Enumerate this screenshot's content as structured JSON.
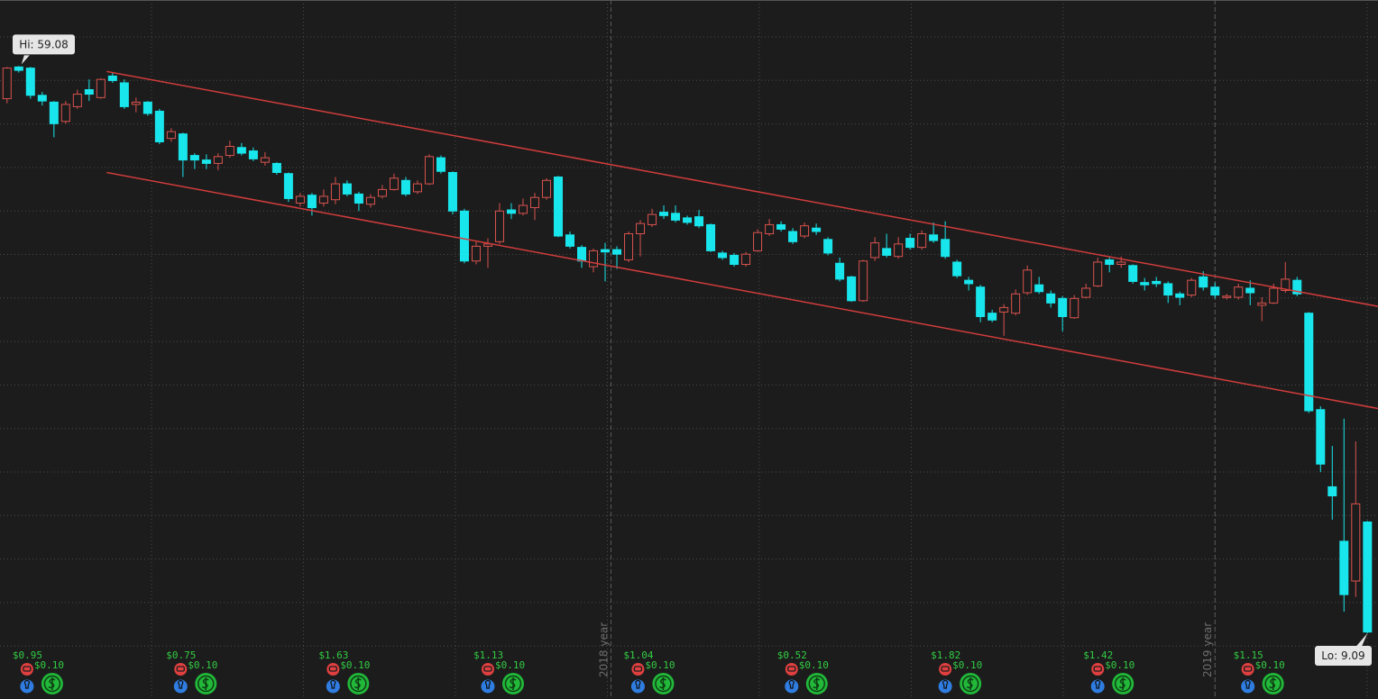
{
  "chart_data": {
    "type": "candlestick",
    "xlim": [
      -0.6,
      116.9
    ],
    "ylim": [
      3.3,
      64.9
    ],
    "up_color": "#d9534f",
    "down_color": "#19e6ec",
    "open": [
      56.2,
      59.0,
      58.9,
      56.5,
      55.9,
      54.2,
      55.5,
      57.0,
      56.3,
      58.2,
      57.6,
      55.7,
      55.9,
      55.1,
      52.7,
      53.1,
      51.2,
      50.8,
      50.5,
      51.2,
      51.9,
      51.6,
      50.6,
      50.5,
      49.6,
      47.0,
      47.7,
      47.0,
      47.3,
      48.7,
      47.8,
      46.9,
      47.6,
      48.2,
      49.0,
      48.0,
      48.7,
      51.0,
      49.7,
      46.3,
      41.9,
      43.2,
      43.6,
      46.4,
      46.1,
      46.6,
      47.5,
      49.3,
      44.2,
      43.1,
      41.4,
      42.9,
      42.9,
      42.0,
      44.3,
      45.1,
      46.2,
      46.1,
      45.7,
      45.8,
      45.1,
      42.6,
      42.4,
      41.6,
      42.8,
      44.3,
      45.1,
      44.5,
      44.1,
      44.8,
      43.8,
      41.7,
      40.5,
      38.4,
      42.2,
      43.0,
      42.3,
      43.9,
      43.1,
      44.2,
      43.8,
      41.8,
      40.2,
      39.6,
      37.3,
      37.4,
      37.3,
      39.1,
      39.8,
      39.0,
      38.6,
      36.9,
      38.7,
      39.7,
      42.0,
      41.6,
      41.5,
      40.0,
      40.1,
      39.9,
      39.0,
      38.9,
      40.5,
      39.6,
      38.7,
      38.7,
      39.5,
      38.0,
      38.2,
      39.3,
      40.2,
      37.3,
      28.8,
      22.0,
      17.2,
      13.7,
      18.9
    ],
    "high": [
      59.0,
      59.08,
      59.0,
      56.8,
      56.0,
      56.0,
      57.0,
      57.9,
      58.0,
      58.5,
      57.9,
      56.3,
      56.0,
      55.3,
      53.6,
      53.2,
      51.4,
      51.3,
      51.4,
      52.5,
      52.3,
      51.9,
      51.5,
      50.6,
      49.7,
      47.9,
      47.9,
      48.2,
      49.3,
      49.0,
      48.0,
      47.8,
      48.6,
      49.6,
      49.3,
      49.0,
      51.3,
      51.2,
      49.8,
      46.5,
      43.6,
      43.9,
      47.0,
      47.0,
      47.4,
      47.9,
      49.2,
      49.4,
      44.5,
      43.3,
      43.0,
      43.5,
      43.2,
      44.5,
      45.5,
      46.5,
      46.8,
      46.8,
      45.9,
      46.4,
      45.2,
      42.8,
      42.6,
      42.7,
      44.7,
      45.6,
      45.4,
      44.8,
      45.3,
      45.2,
      44.0,
      42.2,
      40.6,
      42.0,
      44.0,
      44.3,
      44.0,
      44.3,
      44.6,
      45.3,
      45.4,
      42.0,
      40.5,
      39.8,
      37.6,
      38.1,
      39.4,
      41.5,
      40.5,
      39.3,
      38.8,
      38.9,
      39.9,
      42.2,
      42.3,
      42.3,
      41.6,
      40.4,
      40.5,
      40.1,
      39.2,
      40.4,
      41.0,
      40.0,
      39.0,
      39.9,
      40.2,
      38.7,
      39.9,
      41.8,
      40.5,
      37.4,
      29.1,
      25.6,
      28.0,
      26.0,
      19.0
    ],
    "low": [
      55.8,
      58.5,
      56.2,
      55.6,
      52.8,
      54.0,
      55.3,
      56.0,
      56.2,
      57.6,
      55.3,
      55.0,
      54.7,
      52.2,
      52.4,
      49.3,
      50.0,
      50.0,
      49.9,
      51.0,
      51.2,
      50.7,
      50.3,
      49.5,
      47.1,
      46.7,
      45.9,
      46.7,
      46.9,
      47.6,
      46.3,
      46.6,
      47.4,
      48.1,
      47.6,
      47.8,
      48.6,
      49.6,
      46.0,
      41.7,
      41.6,
      41.3,
      43.4,
      45.6,
      45.9,
      45.5,
      47.3,
      44.0,
      43.0,
      41.3,
      40.9,
      40.1,
      41.2,
      41.8,
      42.3,
      44.9,
      45.6,
      45.3,
      45.1,
      44.8,
      42.7,
      42.0,
      41.4,
      41.4,
      42.7,
      44.1,
      44.5,
      43.4,
      43.9,
      44.2,
      42.4,
      40.1,
      38.3,
      38.3,
      41.9,
      42.2,
      42.1,
      42.9,
      42.9,
      43.5,
      42.1,
      40.4,
      39.3,
      36.5,
      36.5,
      35.3,
      37.1,
      38.9,
      39.0,
      37.8,
      35.7,
      36.8,
      38.6,
      39.6,
      40.9,
      41.3,
      39.9,
      39.3,
      39.6,
      38.2,
      38.0,
      38.7,
      39.3,
      38.6,
      38.5,
      38.5,
      38.0,
      36.6,
      38.1,
      39.1,
      38.8,
      28.5,
      23.3,
      19.1,
      11.0,
      12.3,
      9.09
    ],
    "close": [
      58.9,
      58.7,
      56.5,
      56.0,
      54.0,
      55.7,
      56.6,
      56.6,
      57.9,
      57.8,
      55.5,
      55.9,
      54.9,
      52.4,
      53.3,
      50.8,
      50.8,
      50.5,
      51.1,
      52.0,
      51.4,
      50.9,
      51.0,
      49.7,
      47.4,
      47.6,
      46.6,
      47.6,
      48.7,
      47.8,
      47.0,
      47.5,
      48.2,
      49.2,
      47.8,
      48.7,
      51.1,
      49.8,
      46.3,
      41.9,
      43.2,
      43.4,
      46.3,
      46.1,
      46.8,
      47.5,
      49.0,
      44.1,
      43.2,
      41.9,
      42.8,
      42.7,
      42.5,
      44.3,
      45.2,
      46.0,
      45.9,
      45.5,
      45.3,
      45.0,
      42.8,
      42.2,
      41.6,
      42.5,
      44.4,
      45.1,
      44.7,
      43.6,
      45.0,
      44.5,
      42.6,
      40.3,
      38.4,
      41.9,
      43.5,
      42.4,
      43.4,
      43.1,
      44.3,
      43.7,
      42.3,
      40.6,
      39.9,
      37.0,
      36.7,
      37.8,
      39.0,
      41.1,
      39.2,
      38.2,
      37.0,
      38.6,
      39.5,
      41.8,
      41.6,
      41.8,
      40.1,
      39.8,
      39.9,
      38.9,
      38.7,
      40.2,
      39.6,
      38.9,
      38.8,
      39.6,
      39.1,
      38.2,
      39.5,
      40.3,
      39.0,
      28.7,
      24.0,
      21.2,
      12.5,
      20.5,
      9.2
    ],
    "channel": {
      "color": "#d23c3c",
      "lines": [
        {
          "x": [
            8.5,
            116.9
          ],
          "y": [
            58.6,
            37.9
          ]
        },
        {
          "x": [
            8.5,
            116.9
          ],
          "y": [
            49.7,
            28.9
          ]
        }
      ]
    },
    "hi_label": "Hi: 59.08",
    "lo_label": "Lo: 9.09",
    "year_marks": [
      {
        "x": 51.5,
        "label": "2018 year"
      },
      {
        "x": 103,
        "label": "2019 year"
      }
    ],
    "events": [
      {
        "x": 1.7,
        "earnings": "$0.95",
        "dividend": "$0.10"
      },
      {
        "x": 14.8,
        "earnings": "$0.75",
        "dividend": "$0.10"
      },
      {
        "x": 27.8,
        "earnings": "$1.63",
        "dividend": "$0.10"
      },
      {
        "x": 41,
        "earnings": "$1.13",
        "dividend": "$0.10"
      },
      {
        "x": 53.8,
        "earnings": "$1.04",
        "dividend": "$0.10"
      },
      {
        "x": 66.9,
        "earnings": "$0.52",
        "dividend": "$0.10"
      },
      {
        "x": 80,
        "earnings": "$1.82",
        "dividend": "$0.10"
      },
      {
        "x": 93,
        "earnings": "$1.42",
        "dividend": "$0.10"
      },
      {
        "x": 105.8,
        "earnings": "$1.15",
        "dividend": "$0.10"
      }
    ]
  }
}
